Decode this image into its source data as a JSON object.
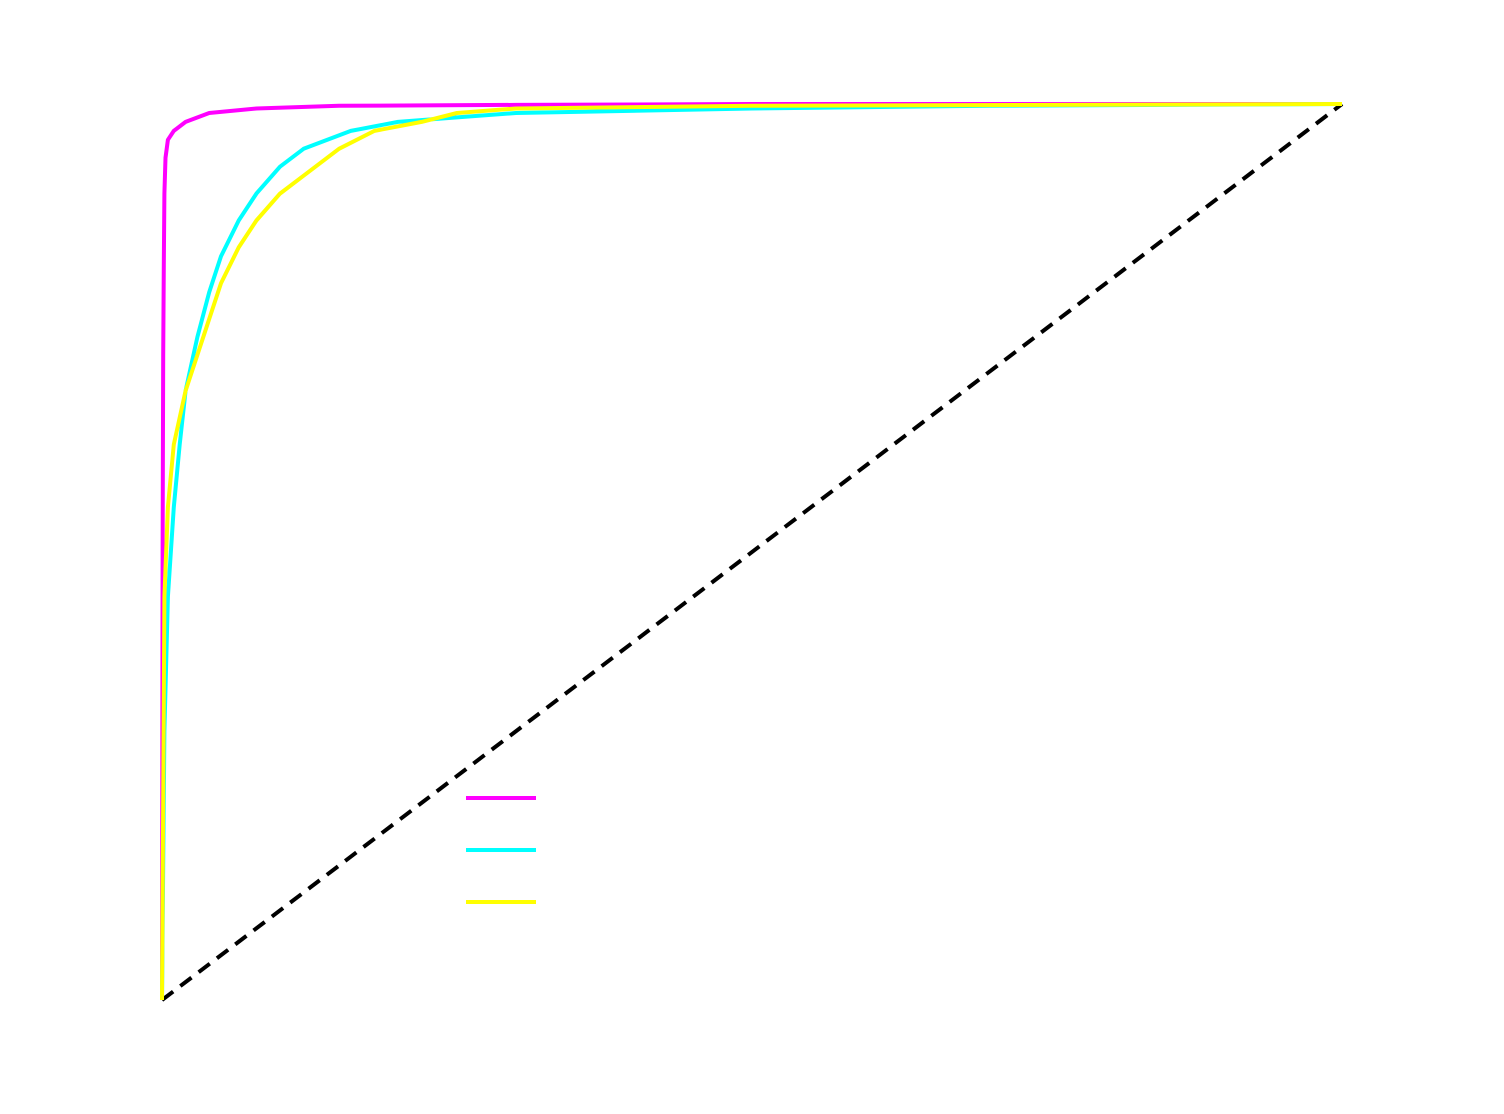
{
  "chart_data": {
    "type": "line",
    "title": "",
    "xlabel": "",
    "ylabel": "",
    "xlim": [
      0,
      1
    ],
    "ylim": [
      0,
      1
    ],
    "grid": false,
    "legend_position": "lower-center",
    "series": [
      {
        "color": "#ff00ff",
        "x": [
          0,
          0.0005,
          0.001,
          0.0015,
          0.002,
          0.003,
          0.005,
          0.01,
          0.02,
          0.04,
          0.08,
          0.15,
          0.3,
          0.5,
          1
        ],
        "y": [
          0,
          0.5,
          0.72,
          0.82,
          0.9,
          0.94,
          0.96,
          0.97,
          0.98,
          0.99,
          0.995,
          0.998,
          0.999,
          1,
          1
        ]
      },
      {
        "color": "#00ffff",
        "x": [
          0,
          0.002,
          0.005,
          0.01,
          0.015,
          0.02,
          0.025,
          0.03,
          0.04,
          0.05,
          0.065,
          0.08,
          0.1,
          0.12,
          0.16,
          0.2,
          0.25,
          0.3,
          0.5,
          0.7,
          1
        ],
        "y": [
          0,
          0.3,
          0.45,
          0.55,
          0.62,
          0.68,
          0.71,
          0.74,
          0.79,
          0.83,
          0.87,
          0.9,
          0.93,
          0.95,
          0.97,
          0.98,
          0.985,
          0.99,
          0.995,
          0.998,
          1
        ]
      },
      {
        "color": "#ffff00",
        "x": [
          0,
          0.002,
          0.005,
          0.01,
          0.015,
          0.02,
          0.03,
          0.04,
          0.05,
          0.065,
          0.08,
          0.1,
          0.12,
          0.15,
          0.18,
          0.22,
          0.25,
          0.3,
          0.5,
          1
        ],
        "y": [
          0,
          0.45,
          0.55,
          0.62,
          0.65,
          0.68,
          0.72,
          0.76,
          0.8,
          0.84,
          0.87,
          0.9,
          0.92,
          0.95,
          0.97,
          0.98,
          0.99,
          0.995,
          0.998,
          1
        ]
      },
      {
        "color": "#000000",
        "dashed": true,
        "x": [
          0,
          1
        ],
        "y": [
          0,
          1
        ]
      }
    ]
  }
}
